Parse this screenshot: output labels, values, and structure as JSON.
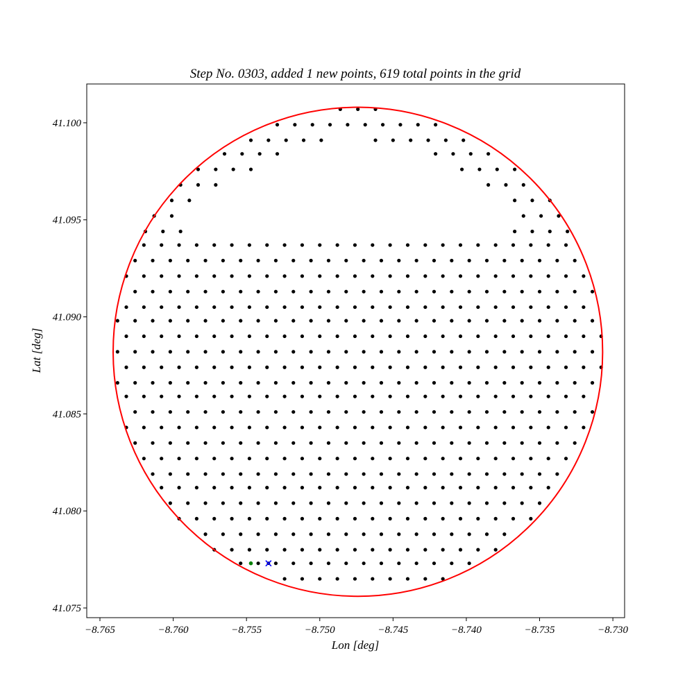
{
  "chart_data": {
    "type": "scatter",
    "title": "Step No. 0303, added 1 new points, 619 total points in the grid",
    "xlabel": "Lon [deg]",
    "ylabel": "Lat [deg]",
    "xlim": [
      -8.7659,
      -8.7292
    ],
    "ylim": [
      41.0745,
      41.102
    ],
    "xticks": [
      -8.765,
      -8.76,
      -8.755,
      -8.75,
      -8.745,
      -8.74,
      -8.735,
      -8.73
    ],
    "xtick_labels": [
      "−8.765",
      "−8.760",
      "−8.755",
      "−8.750",
      "−8.745",
      "−8.740",
      "−8.735",
      "−8.730"
    ],
    "yticks": [
      41.075,
      41.08,
      41.085,
      41.09,
      41.095,
      41.1
    ],
    "ytick_labels": [
      "41.075",
      "41.080",
      "41.085",
      "41.090",
      "41.095",
      "41.100"
    ],
    "grid": false,
    "colors": {
      "points": "#000000",
      "circle": "#ff0000",
      "new_point": "#008000",
      "marker": "#0000ff"
    },
    "circle": {
      "center": [
        -8.7474,
        41.0882
      ],
      "radius_x": 0.0167,
      "radius_y": 0.0126
    },
    "grid_points": {
      "lat_rows": [
        41.1007,
        41.0999,
        41.0991,
        41.0984,
        41.0976,
        41.0968,
        41.096,
        41.0952,
        41.0944,
        41.0937,
        41.0929,
        41.0921,
        41.0913,
        41.0905,
        41.0898,
        41.089,
        41.0882,
        41.0874,
        41.0866,
        41.0859,
        41.0851,
        41.0843,
        41.0835,
        41.0827,
        41.0819,
        41.0812,
        41.0804,
        41.0796,
        41.0788,
        41.078,
        41.0773,
        41.0765
      ],
      "row_offsets": [
        0,
        1,
        0,
        1,
        0,
        1,
        0,
        1,
        0,
        1,
        0,
        1,
        0,
        1,
        0,
        1,
        0,
        1,
        0,
        1,
        0,
        1,
        0,
        1,
        0,
        1,
        0,
        1,
        0,
        1,
        0,
        1
      ],
      "lon_start_even": -8.7638,
      "lon_start_odd": -8.7632,
      "lon_step": 0.0012,
      "lon_columns": 28,
      "cutout": {
        "top_lat": 41.094,
        "max_lat": 41.099,
        "left_lon": -8.7592,
        "right_lon": -8.7373
      },
      "special_rows": [
        {
          "lat": 41.1007,
          "lons": [
            -8.7486,
            -8.7474,
            -8.7462
          ]
        },
        {
          "lat": 41.0999,
          "lons": [
            -8.7529,
            -8.7517,
            -8.7505,
            -8.7493,
            -8.7481,
            -8.7469,
            -8.7457,
            -8.7445,
            -8.7433,
            -8.7421
          ]
        },
        {
          "lat": 41.0991,
          "lons": [
            -8.7547,
            -8.7535,
            -8.7523,
            -8.7511,
            -8.7499,
            -8.7462,
            -8.745,
            -8.7438,
            -8.7426,
            -8.7414,
            -8.7402
          ]
        },
        {
          "lat": 41.0984,
          "lons": [
            -8.7565,
            -8.7553,
            -8.7541,
            -8.7529,
            -8.7421,
            -8.7409,
            -8.7397,
            -8.7385
          ]
        },
        {
          "lat": 41.0976,
          "lons": [
            -8.7583,
            -8.7571,
            -8.7559,
            -8.7547,
            -8.7403,
            -8.7391,
            -8.7379,
            -8.7367
          ]
        },
        {
          "lat": 41.0968,
          "lons": [
            -8.7595,
            -8.7583,
            -8.7571,
            -8.7385,
            -8.7373,
            -8.7361
          ]
        },
        {
          "lat": 41.096,
          "lons": [
            -8.7601,
            -8.7589,
            -8.7367,
            -8.7355,
            -8.7343
          ]
        },
        {
          "lat": 41.0952,
          "lons": [
            -8.7613,
            -8.7601,
            -8.7361,
            -8.7349,
            -8.7337
          ]
        },
        {
          "lat": 41.0944,
          "lons": [
            -8.7619,
            -8.7607,
            -8.7595,
            -8.7367,
            -8.7355,
            -8.7343,
            -8.7331
          ]
        }
      ],
      "color": "#000000"
    },
    "new_point": {
      "lon": -8.7547,
      "lat": 41.0773
    },
    "candidate_marker": {
      "lon": -8.7535,
      "lat": 41.0773,
      "symbol": "x"
    }
  }
}
